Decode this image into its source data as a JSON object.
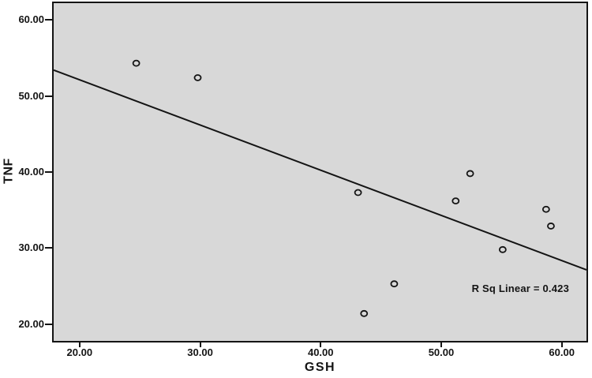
{
  "chart_data": {
    "type": "scatter",
    "title": "",
    "xlabel": "GSH",
    "ylabel": "TNF",
    "annotation": "R Sq Linear = 0.423",
    "xlim": [
      17.85,
      62.05
    ],
    "ylim": [
      17.8,
      62.2
    ],
    "grid": false,
    "x_ticks": [
      {
        "value": 20,
        "label": "20.00"
      },
      {
        "value": 30,
        "label": "30.00"
      },
      {
        "value": 40,
        "label": "40.00"
      },
      {
        "value": 50,
        "label": "50.00"
      },
      {
        "value": 60,
        "label": "60.00"
      }
    ],
    "y_ticks": [
      {
        "value": 20,
        "label": "20.00"
      },
      {
        "value": 30,
        "label": "30.00"
      },
      {
        "value": 40,
        "label": "40.00"
      },
      {
        "value": 50,
        "label": "50.00"
      },
      {
        "value": 60,
        "label": "60.00"
      }
    ],
    "points": [
      {
        "x": 24.7,
        "y": 54.3
      },
      {
        "x": 29.8,
        "y": 52.4
      },
      {
        "x": 43.1,
        "y": 37.3
      },
      {
        "x": 52.4,
        "y": 39.8
      },
      {
        "x": 51.2,
        "y": 36.2
      },
      {
        "x": 58.7,
        "y": 35.1
      },
      {
        "x": 59.1,
        "y": 32.9
      },
      {
        "x": 55.1,
        "y": 29.8
      },
      {
        "x": 46.1,
        "y": 25.3
      },
      {
        "x": 43.6,
        "y": 21.4
      }
    ],
    "regression_line": {
      "slope": -0.594,
      "intercept": 64.0,
      "r_squared": 0.423
    },
    "colors": {
      "figure_background": "#ffffff",
      "plot_background": "#d8d8d8",
      "stroke": "#141414"
    }
  }
}
